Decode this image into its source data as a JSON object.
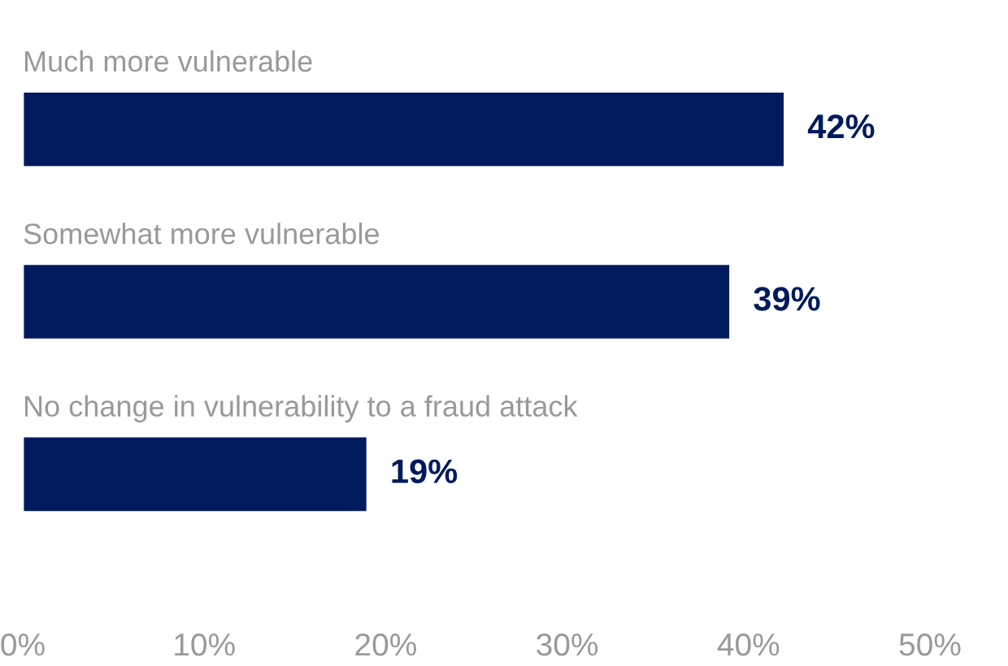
{
  "chart_data": {
    "type": "bar",
    "orientation": "horizontal",
    "categories": [
      "Much more vulnerable",
      "Somewhat more vulnerable",
      "No change in vulnerability to a fraud attack"
    ],
    "values": [
      42,
      39,
      19
    ],
    "color": "#001a5e",
    "value_labels": [
      "42%",
      "39%",
      "19%"
    ],
    "xlim": [
      0,
      50
    ],
    "xticks": [
      {
        "value": 0,
        "label": "0%"
      },
      {
        "value": 10,
        "label": "10%"
      },
      {
        "value": 20,
        "label": "20%"
      },
      {
        "value": 30,
        "label": "30%"
      },
      {
        "value": 40,
        "label": "40%"
      },
      {
        "value": 50,
        "label": "50%"
      }
    ],
    "grid": false,
    "legend": false
  }
}
